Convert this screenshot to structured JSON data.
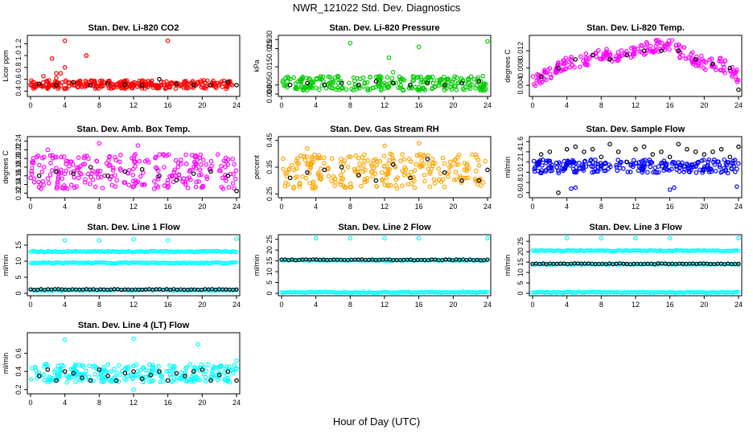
{
  "figure": {
    "title": "NWR_121022  Std. Dev. Diagnostics",
    "xlabel": "Hour of Day (UTC)"
  },
  "colors": {
    "red": "#ff0000",
    "green": "#00cc00",
    "magenta": "#ff00ff",
    "orange": "#ffa500",
    "blue": "#0000ff",
    "cyan": "#00ffff",
    "black": "#000000"
  },
  "chart_data": [
    {
      "type": "scatter",
      "title": "Stan. Dev. Li-820 CO2",
      "ylabel": "Licor ppm",
      "xlim": [
        0,
        24
      ],
      "xticks": [
        "0",
        "4",
        "8",
        "12",
        "16",
        "20",
        "24"
      ],
      "ylim": [
        0.35,
        1.3
      ],
      "yticks": [
        "0.4",
        "0.6",
        "0.8",
        "1.0",
        "1.2"
      ],
      "series": [
        {
          "color": "red",
          "band": [
            0.44,
            0.58
          ],
          "x": [
            0.5,
            1.0,
            1.5,
            2.0,
            2.5,
            3.0,
            3.5,
            4.0,
            4.5,
            5.0,
            5.5,
            6.0,
            6.5,
            7.0,
            7.5,
            8.0,
            8.5,
            9.0,
            9.5,
            10.0,
            10.5,
            11.0,
            11.5,
            12.0,
            12.5,
            13.0,
            13.5,
            14.0,
            14.5,
            15.0,
            15.5,
            16.0,
            16.5,
            17.0,
            17.5,
            18.0,
            18.5,
            19.0,
            19.5,
            20.0,
            20.5,
            21.0,
            21.5,
            22.0,
            22.5,
            23.0,
            23.5
          ],
          "y": [
            0.5,
            0.52,
            0.48,
            0.55,
            0.5,
            0.62,
            0.7,
            0.8,
            0.55,
            0.5,
            0.52,
            0.48,
            1.0,
            0.5,
            0.53,
            0.49,
            0.55,
            0.5,
            0.52,
            0.5,
            0.48,
            0.55,
            0.52,
            0.5,
            0.53,
            0.49,
            0.5,
            0.52,
            0.5,
            0.48,
            0.55,
            0.5,
            0.52,
            0.5,
            0.5,
            0.48,
            0.52,
            0.5,
            0.55,
            0.5,
            0.48,
            0.5,
            0.52,
            0.5,
            0.53,
            0.5,
            0.5
          ],
          "outliers": [
            [
              2.5,
              0.95
            ],
            [
              3.0,
              0.7
            ],
            [
              4.0,
              1.25
            ],
            [
              6.5,
              1.0
            ],
            [
              16.0,
              1.25
            ],
            [
              1.5,
              0.65
            ]
          ]
        },
        {
          "color": "black",
          "x": [
            1,
            3,
            5,
            7,
            9,
            11,
            13,
            15,
            17,
            19,
            21,
            23,
            24
          ],
          "y": [
            0.52,
            0.5,
            0.55,
            0.5,
            0.53,
            0.51,
            0.5,
            0.6,
            0.52,
            0.5,
            0.5,
            0.55,
            0.5
          ]
        }
      ]
    },
    {
      "type": "scatter",
      "title": "Stan. Dev. Li-820 Pressure",
      "ylabel": "kPa",
      "xlim": [
        0,
        24
      ],
      "xticks": [
        "0",
        "4",
        "8",
        "12",
        "16",
        "20",
        "24"
      ],
      "ylim": [
        0.0,
        0.031
      ],
      "yticks": [
        "0.000",
        "0.005",
        "0.015",
        "0.025",
        "0.030"
      ],
      "series": [
        {
          "color": "green",
          "band": [
            0.002,
            0.01
          ],
          "outliers": [
            [
              8,
              0.028
            ],
            [
              12.5,
              0.02
            ],
            [
              16,
              0.026
            ],
            [
              24,
              0.029
            ],
            [
              13,
              0.012
            ]
          ]
        },
        {
          "color": "black",
          "x": [
            1,
            3,
            5,
            7,
            9,
            11,
            13,
            15,
            17,
            19,
            21,
            23
          ],
          "y": [
            0.005,
            0.006,
            0.005,
            0.006,
            0.005,
            0.007,
            0.006,
            0.005,
            0.006,
            0.005,
            0.006,
            0.007
          ]
        }
      ]
    },
    {
      "type": "scatter",
      "title": "Stan. Dev. Li-820 Temp.",
      "ylabel": "degrees C",
      "xlim": [
        0,
        24
      ],
      "xticks": [
        "0",
        "4",
        "8",
        "12",
        "16",
        "20",
        "24"
      ],
      "ylim": [
        0.002,
        0.015
      ],
      "yticks": [
        "0.004",
        "0.008",
        "0.012"
      ],
      "series": [
        {
          "color": "magenta",
          "trend": [
            [
              0,
              0.005
            ],
            [
              2,
              0.007
            ],
            [
              4,
              0.009
            ],
            [
              6,
              0.01
            ],
            [
              8,
              0.011
            ],
            [
              10,
              0.011
            ],
            [
              12,
              0.012
            ],
            [
              14,
              0.013
            ],
            [
              16,
              0.0135
            ],
            [
              17,
              0.012
            ],
            [
              18,
              0.011
            ],
            [
              20,
              0.009
            ],
            [
              22,
              0.009
            ],
            [
              24,
              0.006
            ]
          ],
          "spread": 0.0015
        },
        {
          "color": "black",
          "x": [
            1,
            3,
            5,
            7,
            9,
            11,
            13,
            15,
            17,
            19,
            21,
            23,
            24
          ],
          "y": [
            0.006,
            0.008,
            0.01,
            0.011,
            0.01,
            0.011,
            0.012,
            0.012,
            0.012,
            0.01,
            0.009,
            0.008,
            0.003
          ]
        }
      ]
    },
    {
      "type": "scatter",
      "title": "Stan. Dev. Amb. Box Temp.",
      "ylabel": "degrees C",
      "xlim": [
        0,
        24
      ],
      "xticks": [
        "0",
        "4",
        "8",
        "12",
        "16",
        "20",
        "24"
      ],
      "ylim": [
        0.115,
        0.245
      ],
      "yticks": [
        "0.12",
        "0.14",
        "0.16",
        "0.18",
        "0.20",
        "0.22",
        "0.24"
      ],
      "series": [
        {
          "color": "magenta",
          "band": [
            0.13,
            0.21
          ],
          "outliers": [
            [
              2,
              0.22
            ],
            [
              8,
              0.235
            ],
            [
              12.5,
              0.23
            ]
          ]
        },
        {
          "color": "black",
          "x": [
            1,
            3,
            5,
            7,
            9,
            11,
            13,
            15,
            17,
            19,
            21,
            23,
            24
          ],
          "y": [
            0.16,
            0.17,
            0.165,
            0.18,
            0.16,
            0.17,
            0.175,
            0.16,
            0.15,
            0.165,
            0.17,
            0.16,
            0.125
          ]
        }
      ]
    },
    {
      "type": "scatter",
      "title": "Stan. Dev. Gas Stream RH",
      "ylabel": "percent",
      "xlim": [
        0,
        24
      ],
      "xticks": [
        "0",
        "4",
        "8",
        "12",
        "16",
        "20",
        "24"
      ],
      "ylim": [
        0.245,
        0.455
      ],
      "yticks": [
        "0.25",
        "0.35",
        "0.45"
      ],
      "series": [
        {
          "color": "orange",
          "band": [
            0.27,
            0.4
          ],
          "outliers": [
            [
              3,
              0.42
            ],
            [
              12,
              0.43
            ],
            [
              16,
              0.44
            ]
          ]
        },
        {
          "color": "black",
          "x": [
            1,
            3,
            5,
            7,
            9,
            11,
            13,
            15,
            17,
            19,
            21,
            23,
            24
          ],
          "y": [
            0.31,
            0.33,
            0.34,
            0.35,
            0.32,
            0.3,
            0.36,
            0.31,
            0.38,
            0.33,
            0.3,
            0.3,
            0.34
          ]
        }
      ]
    },
    {
      "type": "scatter",
      "title": "Stan. Dev. Sample Flow",
      "ylabel": "ml/min",
      "xlim": [
        0,
        24
      ],
      "xticks": [
        "0",
        "4",
        "8",
        "12",
        "16",
        "20",
        "24"
      ],
      "ylim": [
        0.55,
        1.65
      ],
      "yticks": [
        "0.6",
        "0.8",
        "1.0",
        "1.2",
        "1.4",
        "1.6"
      ],
      "series": [
        {
          "color": "blue",
          "band": [
            0.98,
            1.25
          ],
          "outliers": [
            [
              4.5,
              0.68
            ],
            [
              5,
              0.7
            ],
            [
              16,
              0.66
            ],
            [
              16.5,
              0.7
            ],
            [
              23.8,
              0.72
            ]
          ]
        },
        {
          "color": "black",
          "x": [
            1,
            2,
            3,
            4,
            5,
            6,
            7,
            8,
            9,
            10,
            11,
            12,
            13,
            14,
            15,
            16,
            17,
            18,
            19,
            20,
            21,
            22,
            23,
            24
          ],
          "y": [
            1.35,
            1.4,
            0.6,
            1.45,
            1.5,
            1.4,
            1.45,
            1.3,
            1.55,
            1.4,
            1.2,
            1.45,
            1.5,
            1.35,
            1.4,
            1.3,
            1.55,
            1.45,
            1.4,
            1.35,
            1.4,
            1.45,
            1.3,
            1.5
          ]
        }
      ]
    },
    {
      "type": "scatter",
      "title": "Stan. Dev. Line 1 Flow",
      "ylabel": "ml/min",
      "xlim": [
        0,
        24
      ],
      "xticks": [
        "0",
        "4",
        "8",
        "12",
        "16",
        "20",
        "24"
      ],
      "ylim": [
        0,
        17.5
      ],
      "yticks": [
        "0",
        "5",
        "10",
        "15"
      ],
      "series": [
        {
          "color": "cyan",
          "lines": [
            13,
            9.5,
            1.0
          ],
          "outliers": [
            [
              4,
              16.5
            ],
            [
              8,
              16.5
            ],
            [
              12,
              16.8
            ],
            [
              16,
              16.5
            ],
            [
              24,
              17
            ]
          ]
        },
        {
          "color": "black",
          "line": 1.2
        }
      ]
    },
    {
      "type": "scatter",
      "title": "Stan. Dev. Line 2 Flow",
      "ylabel": "ml/min",
      "xlim": [
        0,
        24
      ],
      "xticks": [
        "0",
        "4",
        "8",
        "12",
        "16",
        "20",
        "24"
      ],
      "ylim": [
        0,
        26
      ],
      "yticks": [
        "0",
        "5",
        "10",
        "15",
        "20",
        "25"
      ],
      "series": [
        {
          "color": "cyan",
          "lines": [
            15.3,
            0.5
          ],
          "outliers": [
            [
              4,
              25.5
            ],
            [
              8,
              25.5
            ],
            [
              12,
              25.5
            ],
            [
              16,
              25.5
            ],
            [
              24,
              25.5
            ]
          ]
        },
        {
          "color": "black",
          "line": 15.5
        }
      ]
    },
    {
      "type": "scatter",
      "title": "Stan. Dev. Line 3 Flow",
      "ylabel": "ml/min",
      "xlim": [
        0,
        24
      ],
      "xticks": [
        "0",
        "4",
        "8",
        "12",
        "16",
        "20",
        "24"
      ],
      "ylim": [
        0,
        27
      ],
      "yticks": [
        "0",
        "5",
        "10",
        "15",
        "20",
        "25"
      ],
      "series": [
        {
          "color": "cyan",
          "lines": [
            20.5,
            14,
            0.5
          ],
          "outliers": [
            [
              4,
              26.5
            ],
            [
              8,
              26.5
            ],
            [
              12,
              26.5
            ],
            [
              16,
              26.5
            ],
            [
              24,
              26.5
            ]
          ]
        },
        {
          "color": "black",
          "line": 14.2
        }
      ]
    },
    {
      "type": "scatter",
      "title": "Stan. Dev. Line 4 (LT) Flow",
      "ylabel": "ml/min",
      "xlim": [
        0,
        24
      ],
      "xticks": [
        "0",
        "4",
        "8",
        "12",
        "16",
        "20",
        "24"
      ],
      "ylim": [
        0.18,
        0.8
      ],
      "yticks": [
        "0.2",
        "0.4",
        "0.6"
      ],
      "series": [
        {
          "color": "cyan",
          "band": [
            0.28,
            0.48
          ],
          "outliers": [
            [
              4,
              0.75
            ],
            [
              12,
              0.76
            ],
            [
              19.5,
              0.7
            ],
            [
              24,
              0.52
            ],
            [
              12,
              0.2
            ]
          ]
        },
        {
          "color": "black",
          "x": [
            1,
            2,
            3,
            4,
            5,
            6,
            7,
            8,
            9,
            10,
            11,
            12,
            13,
            14,
            15,
            16,
            17,
            18,
            19,
            20,
            21,
            22,
            23,
            24
          ],
          "y": [
            0.35,
            0.42,
            0.3,
            0.4,
            0.38,
            0.33,
            0.3,
            0.42,
            0.35,
            0.3,
            0.38,
            0.4,
            0.32,
            0.36,
            0.4,
            0.3,
            0.38,
            0.35,
            0.4,
            0.42,
            0.3,
            0.36,
            0.4,
            0.3
          ]
        }
      ]
    }
  ]
}
